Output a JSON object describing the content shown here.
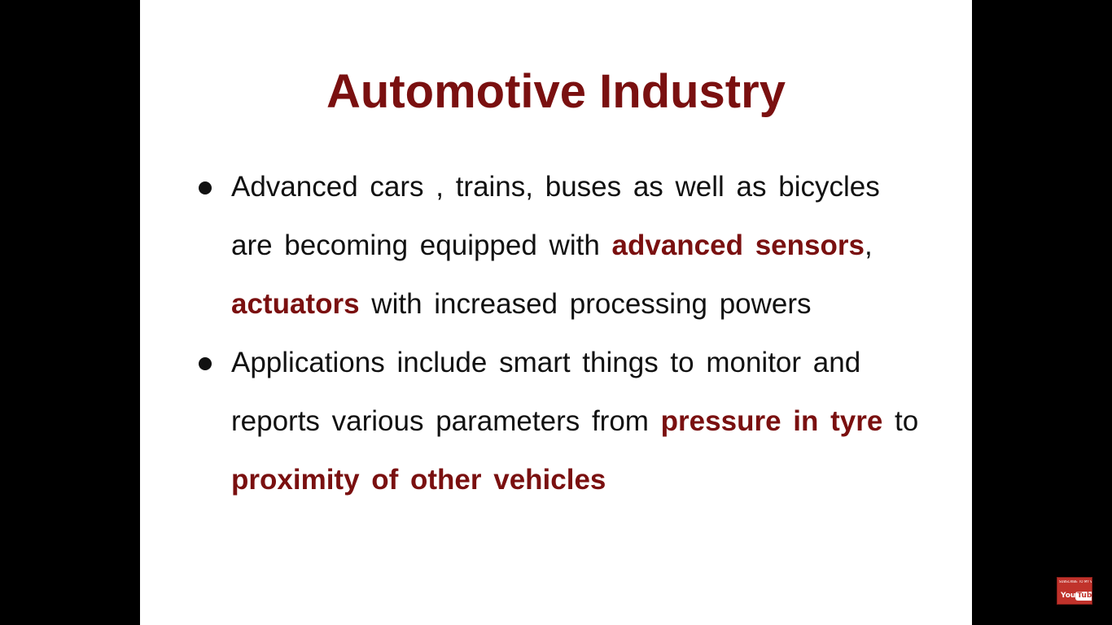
{
  "slide": {
    "title": "Automotive Industry",
    "bullets": [
      {
        "segments": [
          {
            "text": "Advanced cars , trains, buses as well as bicycles are becoming equipped with ",
            "emphasis": false
          },
          {
            "text": "advanced sensors",
            "emphasis": true
          },
          {
            "text": ", ",
            "emphasis": false
          },
          {
            "text": "actuators",
            "emphasis": true
          },
          {
            "text": " with increased processing powers",
            "emphasis": false
          }
        ]
      },
      {
        "segments": [
          {
            "text": "Applications include smart things to monitor and reports various parameters from ",
            "emphasis": false
          },
          {
            "text": "pressure in tyre",
            "emphasis": true
          },
          {
            "text": " to ",
            "emphasis": false
          },
          {
            "text": "proximity of other vehicles",
            "emphasis": true
          }
        ]
      }
    ]
  },
  "youtube_badge": {
    "subscribe_text": "SUBSCRIBE TO MY VIDEOS ON",
    "logo_you": "You",
    "logo_tube": "Tube"
  },
  "colors": {
    "accent": "#7a1010",
    "body_text": "#111111",
    "slide_background": "#ffffff",
    "letterbox": "#000000",
    "badge_red": "#c0322b"
  }
}
